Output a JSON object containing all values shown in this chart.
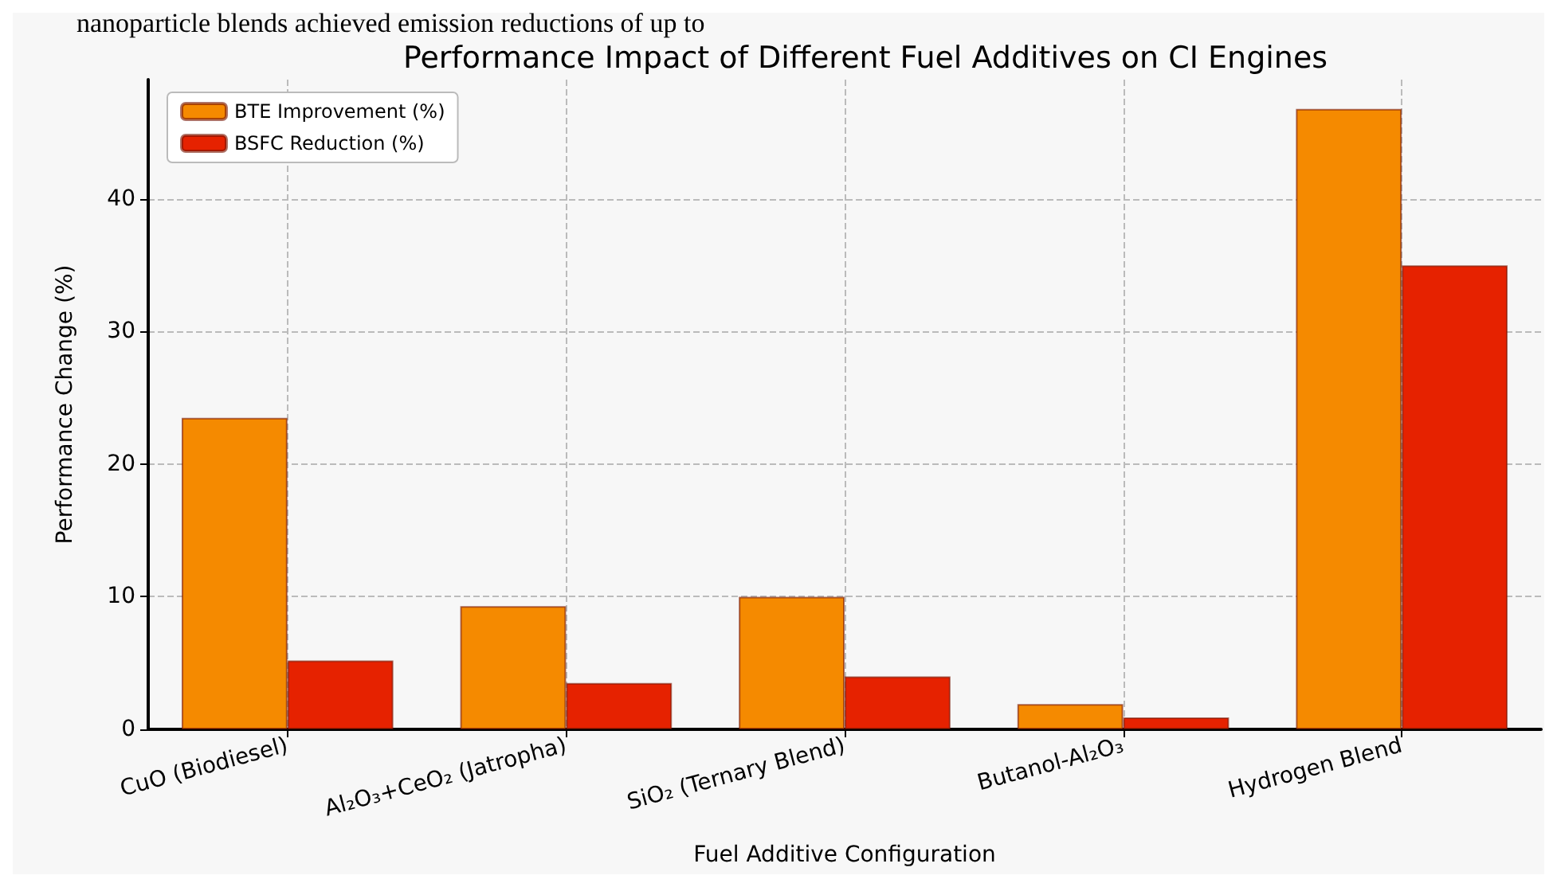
{
  "chart_data": {
    "type": "bar",
    "title": "Performance Impact of Different Fuel Additives on CI Engines",
    "xlabel": "Fuel Additive Configuration",
    "ylabel": "Performance Change (%)",
    "annotations": [
      "nanoparticle blends achieved emission reductions of up to"
    ],
    "categories": [
      "CuO (Biodiesel)",
      "Al₂O₃+CeO₂ (Jatropha)",
      "SiO₂ (Ternary Blend)",
      "Butanol-Al₂O₃",
      "Hydrogen Blend"
    ],
    "series": [
      {
        "name": "BTE Improvement (%)",
        "color": "#f58a00",
        "values": [
          23.5,
          9.3,
          10,
          1.9,
          46.8
        ]
      },
      {
        "name": "BSFC Reduction (%)",
        "color": "#e62200",
        "values": [
          5.2,
          3.5,
          4,
          0.9,
          35
        ]
      }
    ],
    "ylim": [
      0,
      49
    ],
    "yticks": [
      0,
      10,
      20,
      30,
      40
    ],
    "grid": true,
    "legend": "top left"
  }
}
